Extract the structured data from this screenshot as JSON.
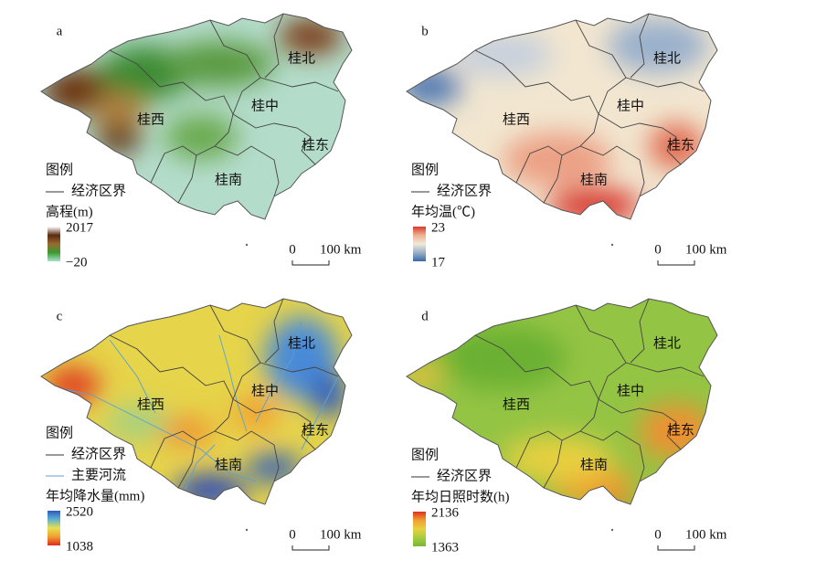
{
  "panels": [
    {
      "label": "a",
      "regions": [
        "桂北",
        "桂中",
        "桂西",
        "桂东",
        "桂南"
      ],
      "legend_title": "图例",
      "legend_items": [
        "经济区界"
      ],
      "variable": "高程(m)",
      "colorbar_max": "2017",
      "colorbar_min": "−20",
      "scale_zero": "0",
      "scale_length": "100 km"
    },
    {
      "label": "b",
      "regions": [
        "桂北",
        "桂中",
        "桂西",
        "桂东",
        "桂南"
      ],
      "legend_title": "图例",
      "legend_items": [
        "经济区界"
      ],
      "variable": "年均温(℃)",
      "colorbar_max": "23",
      "colorbar_min": "17",
      "scale_zero": "0",
      "scale_length": "100 km"
    },
    {
      "label": "c",
      "regions": [
        "桂北",
        "桂中",
        "桂西",
        "桂东",
        "桂南"
      ],
      "legend_title": "图例",
      "legend_items": [
        "经济区界",
        "主要河流"
      ],
      "variable": "年均降水量(mm)",
      "colorbar_max": "2520",
      "colorbar_min": "1038",
      "scale_zero": "0",
      "scale_length": "100 km"
    },
    {
      "label": "d",
      "regions": [
        "桂北",
        "桂中",
        "桂西",
        "桂东",
        "桂南"
      ],
      "legend_title": "图例",
      "legend_items": [
        "经济区界"
      ],
      "variable": "年均日照时数(h)",
      "colorbar_max": "2136",
      "colorbar_min": "1363",
      "scale_zero": "0",
      "scale_length": "100 km"
    }
  ]
}
